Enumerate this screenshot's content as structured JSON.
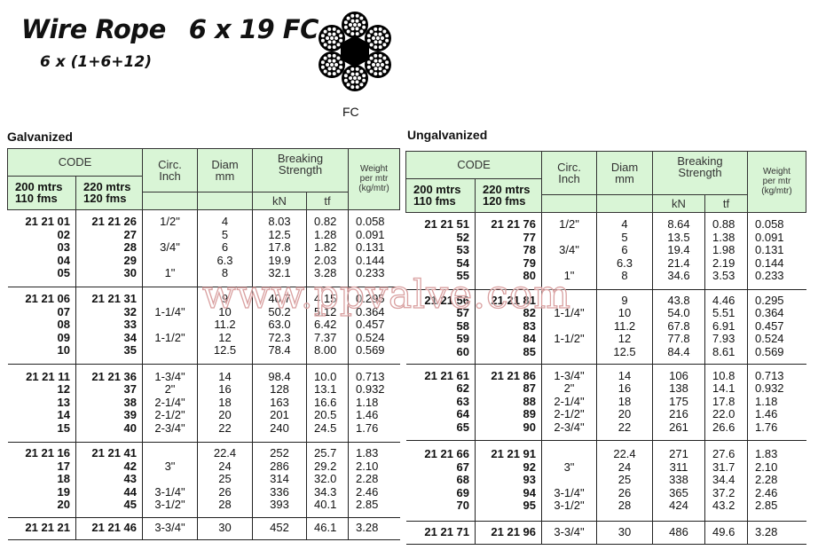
{
  "header": {
    "title_part1": "Wire Rope",
    "title_part2": "6 x 19 FC",
    "subtitle": "6 x (1+6+12)",
    "core_label": "FC",
    "cross_section_icon": "wire-rope-cross-section"
  },
  "watermark": "www.ppvalve.com",
  "colors": {
    "header_bg": "#d9f5d6",
    "watermark": "#d9a0a0"
  },
  "columns": {
    "code": "CODE",
    "code200": "200 mtrs\n110 fms",
    "code220": "220 mtrs\n120 fms",
    "circ": "Circ.\nInch",
    "diam": "Diam\nmm",
    "breaking": "Breaking\nStrength",
    "kn": "kN",
    "tf": "tf",
    "weight": "Weight\nper mtr\n(kg/mtr)"
  },
  "tables": [
    {
      "title": "Galvanized",
      "groups": [
        [
          [
            "21 21 01",
            "21 21 26",
            "1/2\"",
            "4",
            "8.03",
            "0.82",
            "0.058"
          ],
          [
            "02",
            "27",
            "",
            "5",
            "12.5",
            "1.28",
            "0.091"
          ],
          [
            "03",
            "28",
            "3/4\"",
            "6",
            "17.8",
            "1.82",
            "0.131"
          ],
          [
            "04",
            "29",
            "",
            "6.3",
            "19.9",
            "2.03",
            "0.144"
          ],
          [
            "05",
            "30",
            "1\"",
            "8",
            "32.1",
            "3.28",
            "0.233"
          ]
        ],
        [
          [
            "21 21 06",
            "21 21 31",
            "",
            "9",
            "40.7",
            "4.15",
            "0.295"
          ],
          [
            "07",
            "32",
            "1-1/4\"",
            "10",
            "50.2",
            "5.12",
            "0.364"
          ],
          [
            "08",
            "33",
            "",
            "11.2",
            "63.0",
            "6.42",
            "0.457"
          ],
          [
            "09",
            "34",
            "1-1/2\"",
            "12",
            "72.3",
            "7.37",
            "0.524"
          ],
          [
            "10",
            "35",
            "",
            "12.5",
            "78.4",
            "8.00",
            "0.569"
          ]
        ],
        [
          [
            "21 21 11",
            "21 21 36",
            "1-3/4\"",
            "14",
            "98.4",
            "10.0",
            "0.713"
          ],
          [
            "12",
            "37",
            "2\"",
            "16",
            "128",
            "13.1",
            "0.932"
          ],
          [
            "13",
            "38",
            "2-1/4\"",
            "18",
            "163",
            "16.6",
            "1.18"
          ],
          [
            "14",
            "39",
            "2-1/2\"",
            "20",
            "201",
            "20.5",
            "1.46"
          ],
          [
            "15",
            "40",
            "2-3/4\"",
            "22",
            "240",
            "24.5",
            "1.76"
          ]
        ],
        [
          [
            "21 21 16",
            "21 21 41",
            "",
            "22.4",
            "252",
            "25.7",
            "1.83"
          ],
          [
            "17",
            "42",
            "3\"",
            "24",
            "286",
            "29.2",
            "2.10"
          ],
          [
            "18",
            "43",
            "",
            "25",
            "314",
            "32.0",
            "2.28"
          ],
          [
            "19",
            "44",
            "3-1/4\"",
            "26",
            "336",
            "34.3",
            "2.46"
          ],
          [
            "20",
            "45",
            "3-1/2\"",
            "28",
            "393",
            "40.1",
            "2.85"
          ]
        ],
        [
          [
            "21 21 21",
            "21 21 46",
            "3-3/4\"",
            "30",
            "452",
            "46.1",
            "3.28"
          ]
        ]
      ]
    },
    {
      "title": "Ungalvanized",
      "groups": [
        [
          [
            "21 21 51",
            "21 21 76",
            "1/2\"",
            "4",
            "8.64",
            "0.88",
            "0.058"
          ],
          [
            "52",
            "77",
            "",
            "5",
            "13.5",
            "1.38",
            "0.091"
          ],
          [
            "53",
            "78",
            "3/4\"",
            "6",
            "19.4",
            "1.98",
            "0.131"
          ],
          [
            "54",
            "79",
            "",
            "6.3",
            "21.4",
            "2.19",
            "0.144"
          ],
          [
            "55",
            "80",
            "1\"",
            "8",
            "34.6",
            "3.53",
            "0.233"
          ]
        ],
        [
          [
            "21 21 56",
            "21 21 81",
            "",
            "9",
            "43.8",
            "4.46",
            "0.295"
          ],
          [
            "57",
            "82",
            "1-1/4\"",
            "10",
            "54.0",
            "5.51",
            "0.364"
          ],
          [
            "58",
            "83",
            "",
            "11.2",
            "67.8",
            "6.91",
            "0.457"
          ],
          [
            "59",
            "84",
            "1-1/2\"",
            "12",
            "77.8",
            "7.93",
            "0.524"
          ],
          [
            "60",
            "85",
            "",
            "12.5",
            "84.4",
            "8.61",
            "0.569"
          ]
        ],
        [
          [
            "21 21 61",
            "21 21 86",
            "1-3/4\"",
            "14",
            "106",
            "10.8",
            "0.713"
          ],
          [
            "62",
            "87",
            "2\"",
            "16",
            "138",
            "14.1",
            "0.932"
          ],
          [
            "63",
            "88",
            "2-1/4\"",
            "18",
            "175",
            "17.8",
            "1.18"
          ],
          [
            "64",
            "89",
            "2-1/2\"",
            "20",
            "216",
            "22.0",
            "1.46"
          ],
          [
            "65",
            "90",
            "2-3/4\"",
            "22",
            "261",
            "26.6",
            "1.76"
          ]
        ],
        [
          [
            "21 21 66",
            "21 21 91",
            "",
            "22.4",
            "271",
            "27.6",
            "1.83"
          ],
          [
            "67",
            "92",
            "3\"",
            "24",
            "311",
            "31.7",
            "2.10"
          ],
          [
            "68",
            "93",
            "",
            "25",
            "338",
            "34.4",
            "2.28"
          ],
          [
            "69",
            "94",
            "3-1/4\"",
            "26",
            "365",
            "37.2",
            "2.46"
          ],
          [
            "70",
            "95",
            "3-1/2\"",
            "28",
            "424",
            "43.2",
            "2.85"
          ]
        ],
        [
          [
            "21 21 71",
            "21 21 96",
            "3-3/4\"",
            "30",
            "486",
            "49.6",
            "3.28"
          ]
        ]
      ]
    }
  ]
}
